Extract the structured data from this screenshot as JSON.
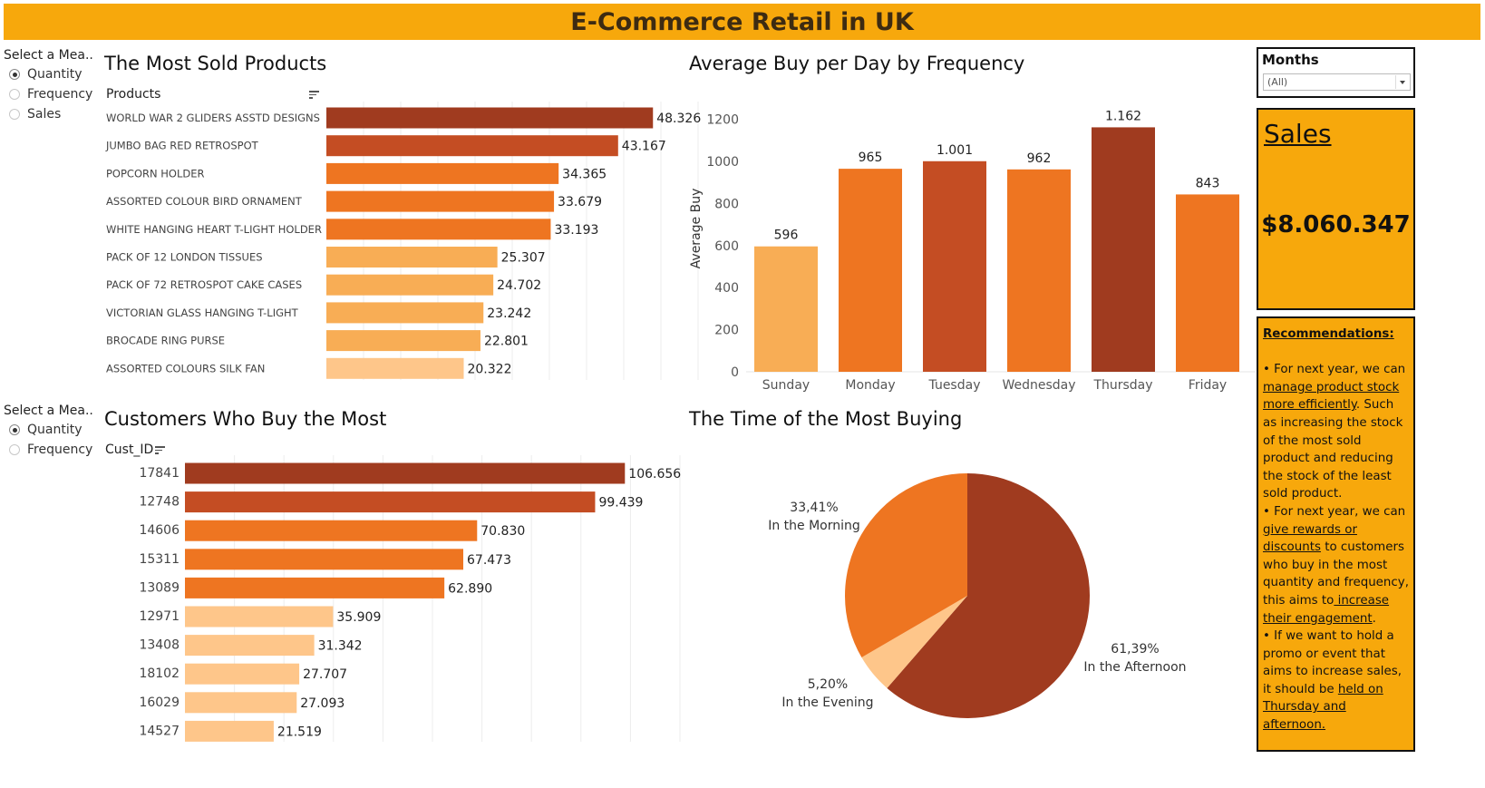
{
  "dashboard_title": "E-Commerce Retail in UK",
  "colors": {
    "banner": "#f7a80c",
    "bar_darkest": "#a03b1f",
    "bar_dark": "#c44d23",
    "bar_mid": "#ee7521",
    "bar_light": "#f8ad55",
    "bar_lightest": "#fec68a"
  },
  "parameters": {
    "top": {
      "title": "Select a Mea..",
      "options": [
        "Quantity",
        "Frequency",
        "Sales"
      ],
      "selected": "Quantity"
    },
    "bottom": {
      "title": "Select a Mea..",
      "options": [
        "Quantity",
        "Frequency"
      ],
      "selected": "Quantity"
    }
  },
  "months_filter": {
    "label": "Months",
    "value": "(All)"
  },
  "sales_card": {
    "label": "Sales",
    "value": "$8.060.347"
  },
  "recommendations": {
    "title": "Recommendations:",
    "items": [
      [
        {
          "text": "• For next year, we can "
        },
        {
          "text": "manage product stock more efficiently",
          "u": true
        },
        {
          "text": ". Such as increasing the stock of the most sold product and reducing the stock of the least sold product."
        }
      ],
      [
        {
          "text": "• For next year, we can "
        },
        {
          "text": "give rewards or discounts",
          "u": true
        },
        {
          "text": " to customers who buy in the most quantity and frequency, this aims to"
        },
        {
          "text": " increase their engagement",
          "u": true
        },
        {
          "text": "."
        }
      ],
      [
        {
          "text": "• If we want to hold a promo or event that aims to increase sales, it should be "
        },
        {
          "text": "held on Thursday and afternoon.",
          "u": true
        }
      ]
    ]
  },
  "chart_data": [
    {
      "id": "products",
      "type": "bar",
      "orientation": "horizontal",
      "title": "The Most Sold Products",
      "dimension_label": "Products",
      "categories": [
        "WORLD WAR 2 GLIDERS ASSTD DESIGNS",
        "JUMBO BAG RED RETROSPOT",
        "POPCORN HOLDER",
        "ASSORTED COLOUR BIRD ORNAMENT",
        "WHITE HANGING HEART T-LIGHT HOLDER",
        "PACK OF 12 LONDON TISSUES",
        "PACK OF 72 RETROSPOT CAKE CASES",
        "VICTORIAN GLASS HANGING T-LIGHT",
        "BROCADE RING PURSE",
        "ASSORTED COLOURS SILK FAN"
      ],
      "values": [
        48326,
        43167,
        34365,
        33679,
        33193,
        25307,
        24702,
        23242,
        22801,
        20322
      ],
      "labels": [
        "48.326",
        "43.167",
        "34.365",
        "33.679",
        "33.193",
        "25.307",
        "24.702",
        "23.242",
        "22.801",
        "20.322"
      ],
      "xlim": [
        0,
        55000
      ],
      "grid": true
    },
    {
      "id": "weekday",
      "type": "bar",
      "orientation": "vertical",
      "title": "Average Buy per Day by Frequency",
      "ylabel": "Average Buy",
      "categories": [
        "Sunday",
        "Monday",
        "Tuesday",
        "Wednesday",
        "Thursday",
        "Friday"
      ],
      "values": [
        596,
        965,
        1001,
        962,
        1162,
        843
      ],
      "labels": [
        "596",
        "965",
        "1.001",
        "962",
        "1.162",
        "843"
      ],
      "ylim": [
        0,
        1250
      ],
      "yticks": [
        0,
        200,
        400,
        600,
        800,
        1000,
        1200
      ],
      "grid": false
    },
    {
      "id": "customers",
      "type": "bar",
      "orientation": "horizontal",
      "title": "Customers Who Buy the Most",
      "dimension_label": "Cust_ID",
      "categories": [
        "17841",
        "12748",
        "14606",
        "15311",
        "13089",
        "12971",
        "13408",
        "18102",
        "16029",
        "14527"
      ],
      "values": [
        106656,
        99439,
        70830,
        67473,
        62890,
        35909,
        31342,
        27707,
        27093,
        21519
      ],
      "labels": [
        "106.656",
        "99.439",
        "70.830",
        "67.473",
        "62.890",
        "35.909",
        "31.342",
        "27.707",
        "27.093",
        "21.519"
      ],
      "xlim": [
        0,
        120000
      ],
      "grid": true
    },
    {
      "id": "time_of_day",
      "type": "pie",
      "title": "The Time of the Most Buying",
      "slices": [
        {
          "label": "In the Afternoon",
          "value": 61.39,
          "pct": "61,39%"
        },
        {
          "label": "In the Evening",
          "value": 5.2,
          "pct": "5,20%"
        },
        {
          "label": "In the Morning",
          "value": 33.41,
          "pct": "33,41%"
        }
      ]
    }
  ]
}
